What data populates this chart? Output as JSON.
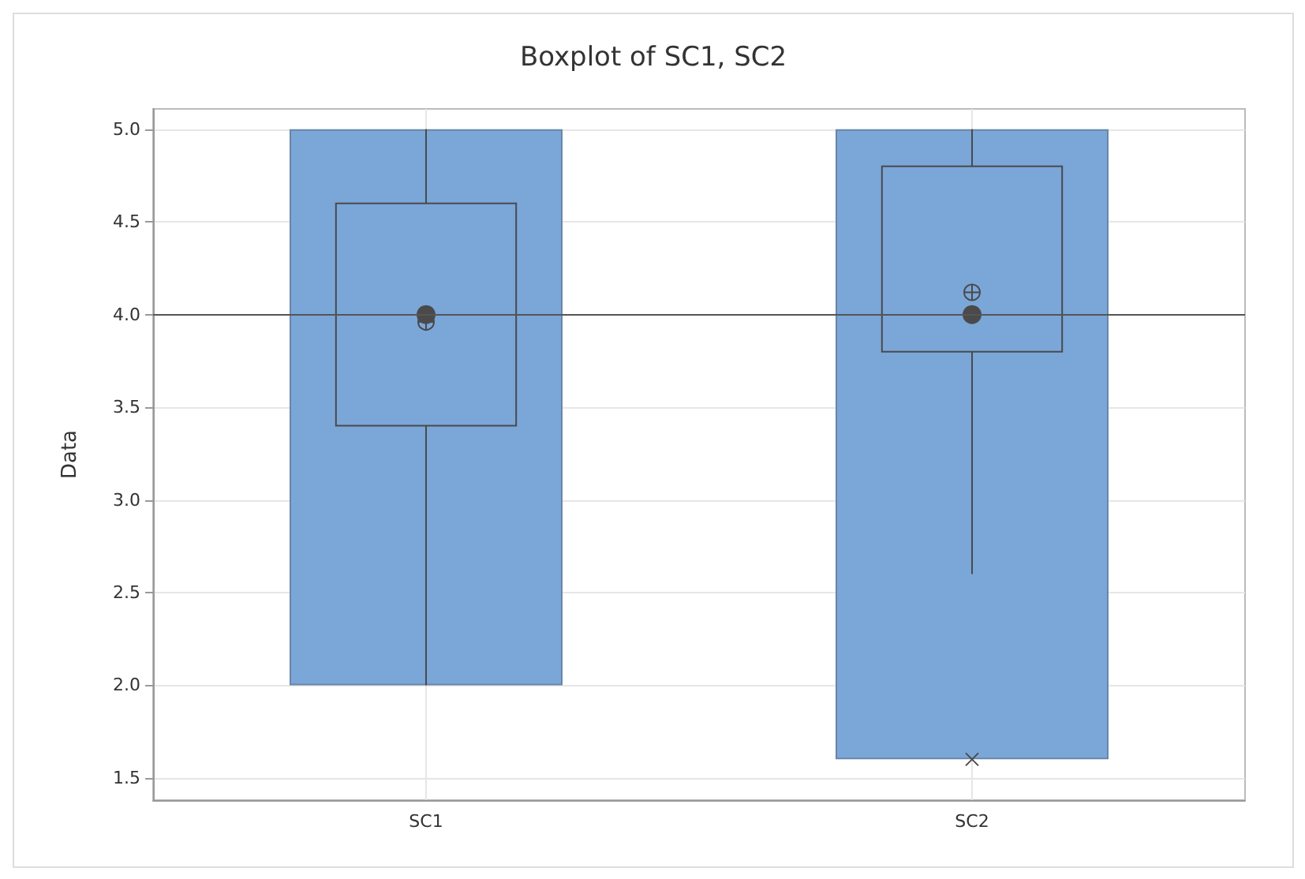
{
  "chart_data": {
    "type": "box",
    "title": "Boxplot of SC1, SC2",
    "ylabel": "Data",
    "categories": [
      "SC1",
      "SC2"
    ],
    "series": [
      {
        "type": "bar",
        "color": "#7ba6d8",
        "base": [
          2.0,
          1.6
        ],
        "values": [
          3.0,
          3.4
        ]
      },
      {
        "color": "#4a4a4a",
        "boxes": [
          {
            "low": 2.0,
            "q1": 3.4,
            "median": 4.0,
            "q3": 4.6,
            "high": 5.0,
            "mean": 3.96
          },
          {
            "low": 2.6,
            "q1": 3.8,
            "median": 4.0,
            "q3": 4.8,
            "high": 5.0,
            "mean": 4.12,
            "outliers": [
              1.6
            ]
          }
        ]
      }
    ],
    "ylim": [
      1.38,
      5.11
    ],
    "yticks": [
      {
        "value": 1.5,
        "label": "1.5"
      },
      {
        "value": 2,
        "label": "2.0"
      },
      {
        "value": 2.5,
        "label": "2.5"
      },
      {
        "value": 3,
        "label": "3.0"
      },
      {
        "value": 3.5,
        "label": "3.5"
      },
      {
        "value": 4,
        "label": "4.0"
      },
      {
        "value": 4.5,
        "label": "4.5"
      },
      {
        "value": 5,
        "label": "5.0"
      }
    ],
    "ref_lines": [
      {
        "axis": "y",
        "value": 4,
        "color": "#555555"
      }
    ],
    "grid": true
  }
}
